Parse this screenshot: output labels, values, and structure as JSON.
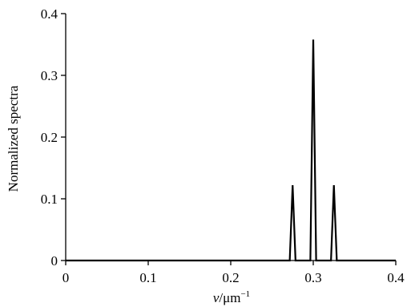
{
  "chart_data": {
    "type": "line",
    "title": "",
    "xlabel": "v/μm⁻¹",
    "xlabel_var": "v",
    "xlabel_unit": "/μm",
    "xlabel_exp": "−1",
    "ylabel": "Normalized spectra",
    "xlim": [
      0,
      0.4
    ],
    "ylim": [
      0,
      0.4
    ],
    "grid": false,
    "legend": "none",
    "x_ticks": [
      0,
      0.1,
      0.2,
      0.3,
      0.4
    ],
    "x_tick_labels": [
      "0",
      "0.1",
      "0.2",
      "0.3",
      "0.4"
    ],
    "y_ticks": [
      0,
      0.1,
      0.2,
      0.3,
      0.4
    ],
    "y_tick_labels": [
      "0",
      "0.1",
      "0.2",
      "0.3",
      "0.4"
    ],
    "series": [
      {
        "x": [
          0,
          0.2715,
          0.275,
          0.2785,
          0.2965,
          0.3,
          0.3035,
          0.3215,
          0.325,
          0.3285,
          0.4
        ],
        "y": [
          0,
          0,
          0.122,
          0,
          0,
          0.358,
          0,
          0,
          0.122,
          0,
          0
        ]
      }
    ],
    "line_color": "#000000"
  }
}
